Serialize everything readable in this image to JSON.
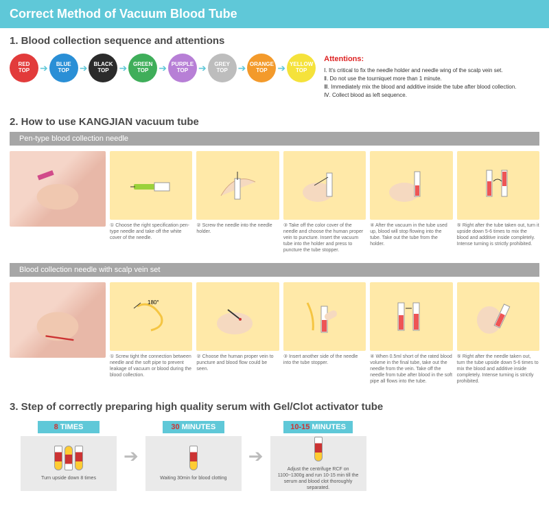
{
  "header": "Correct Method of Vacuum Blood Tube",
  "section1": {
    "title": "1. Blood collection sequence and attentions",
    "tubes": [
      {
        "line1": "RED",
        "line2": "TOP",
        "color": "#e23b3b"
      },
      {
        "line1": "BLUE",
        "line2": "TOP",
        "color": "#2a8fd6"
      },
      {
        "line1": "BLACK",
        "line2": "TOP",
        "color": "#2b2b2b"
      },
      {
        "line1": "GREEN",
        "line2": "TOP",
        "color": "#3fae5a"
      },
      {
        "line1": "PURPLE",
        "line2": "TOP",
        "color": "#b77fd6"
      },
      {
        "line1": "GREY",
        "line2": "TOP",
        "color": "#bdbdbd"
      },
      {
        "line1": "ORANGE",
        "line2": "TOP",
        "color": "#f39a2b"
      },
      {
        "line1": "YELLOW",
        "line2": "TOP",
        "color": "#f5e23b"
      }
    ],
    "att_title": "Attentions:",
    "att_items": [
      "Ⅰ. It's critical to fix the needle holder and needle wing of the scalp vein set.",
      "Ⅱ. Do not use the tourniquet more than 1 minute.",
      "Ⅲ. Immediately mix the blood and additive inside the tube after blood collection.",
      "Ⅳ. Collect blood as left sequence."
    ]
  },
  "section2": {
    "title": "2. How to use KANGJIAN vacuum tube",
    "sub1": "Pen-type blood collection needle",
    "steps1": [
      "① Choose the right specification pen-type needle and take off the white cover of the needle.",
      "② Screw the needle into the needle holder.",
      "③ Take off the color cover of the needle and choose the human proper vein to puncture. Insert the vacuum tube into the holder and press to puncture the tube stopper.",
      "④ After the vacuum in the tube used up, blood will stop flowing into the tube. Take out the tube from the holder.",
      "⑤ Right after the tube taken out, turn it upside down 5-6 times to mix the blood and additive inside completely. Intense turning is strictly prohibited."
    ],
    "sub2": "Blood collection needle with scalp vein set",
    "steps2": [
      "① Screw tight the connection between needle and the soft pipe to prevent leakage of vacuum or blood during the blood collection.",
      "② Choose the human proper vein to puncture and blood flow could be seen.",
      "③ Insert another side of the needle into the tube stopper.",
      "④ When 0.5ml short of the rated blood volume in the final tube, take out the needle from the vein. Take off the needle from tube after blood in the soft pipe all flows into the tube.",
      "⑤ Right after the needle taken out, turn the tube upside down 5-6 times to mix the blood and additive inside completely. Intense turning is strictly prohibited."
    ]
  },
  "section3": {
    "title": "3. Step of correctly preparing high quality serum with Gel/Clot activator tube",
    "boxes": [
      {
        "num": "8",
        "unit": "TIMES",
        "txt": "Turn upside down 8 times"
      },
      {
        "num": "30",
        "unit": "MINUTES",
        "txt": "Waiting 30min for blood clotting"
      },
      {
        "num": "10-15",
        "unit": "MINUTES",
        "txt": "Adjust the centrifuge RCF on 1100~1300g and run 10-15 min till the serum and blood clot thoroughly separated."
      }
    ]
  }
}
